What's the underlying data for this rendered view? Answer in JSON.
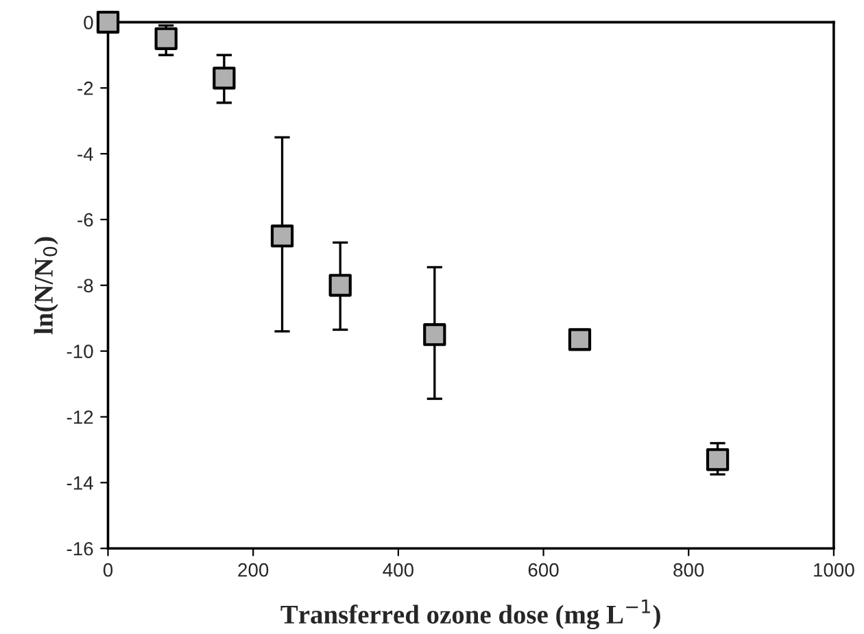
{
  "chart_data": {
    "type": "scatter",
    "xlabel": "Transferred ozone dose (mg L$^{−1}$)",
    "ylabel": "ln(N/N$_{0}$)",
    "x": [
      0,
      80,
      160,
      240,
      320,
      450,
      650,
      840
    ],
    "series": [
      {
        "color": "#b0b0b0",
        "values": [
          0,
          -0.5,
          -1.7,
          -6.5,
          -8.0,
          -9.5,
          -9.65,
          -13.3
        ],
        "errors": [
          null,
          [
            -1.0,
            -0.1
          ],
          [
            -2.45,
            -1.0
          ],
          [
            -9.4,
            -3.5
          ],
          [
            -9.35,
            -6.7
          ],
          [
            -11.45,
            -7.45
          ],
          null,
          [
            -13.75,
            -12.8
          ]
        ]
      }
    ],
    "marker": "square",
    "xlim": [
      0,
      1000
    ],
    "xticks": [
      0,
      200,
      400,
      600,
      800,
      1000
    ],
    "ylim": [
      -16,
      0
    ],
    "yticks": [
      -16,
      -14,
      -12,
      -10,
      -8,
      -6,
      -4,
      -2,
      0
    ],
    "grid": false,
    "legend": false
  }
}
